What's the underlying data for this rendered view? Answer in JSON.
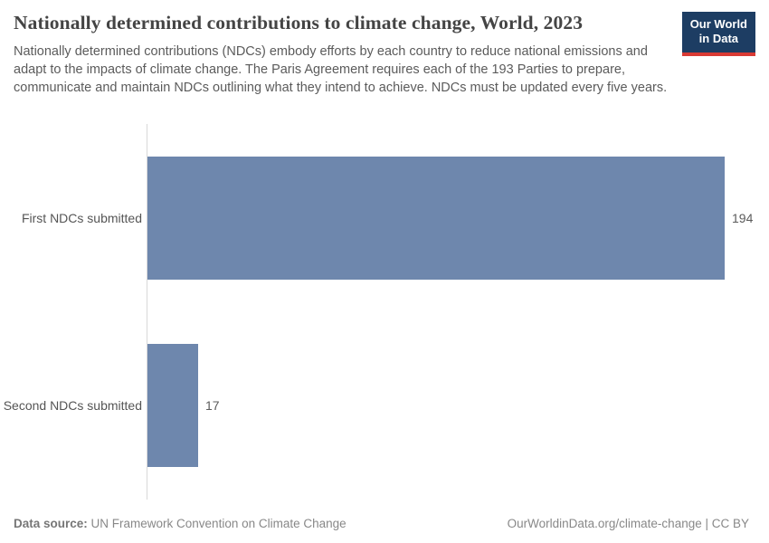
{
  "header": {
    "title": "Nationally determined contributions to climate change, World, 2023",
    "subtitle": "Nationally determined contributions (NDCs) embody efforts by each country to reduce national emissions and adapt to the impacts of climate change. The Paris Agreement requires each of the 193 Parties to prepare, communicate and maintain NDCs outlining what they intend to achieve. NDCs must be updated every five years.",
    "logo": {
      "line1": "Our World",
      "line2": "in Data"
    }
  },
  "chart_data": {
    "type": "bar",
    "orientation": "horizontal",
    "title": "Nationally determined contributions to climate change, World, 2023",
    "categories": [
      "First NDCs submitted",
      "Second NDCs submitted"
    ],
    "values": [
      194,
      17
    ],
    "value_labels": [
      "194",
      "17"
    ],
    "xlabel": "",
    "ylabel": "",
    "xlim": [
      0,
      194
    ],
    "grid": false,
    "legend": "none",
    "bar_color": "#6e87ad"
  },
  "footer": {
    "source_label": "Data source:",
    "source_text": " UN Framework Convention on Climate Change",
    "credit": "OurWorldinData.org/climate-change | CC BY"
  },
  "colors": {
    "bar": "#6e87ad",
    "logo_navy": "#1d3d63",
    "logo_red": "#d93a34",
    "axis_line": "#d9d9d9",
    "title_text": "#444444",
    "body_text": "#5b5b5b"
  }
}
